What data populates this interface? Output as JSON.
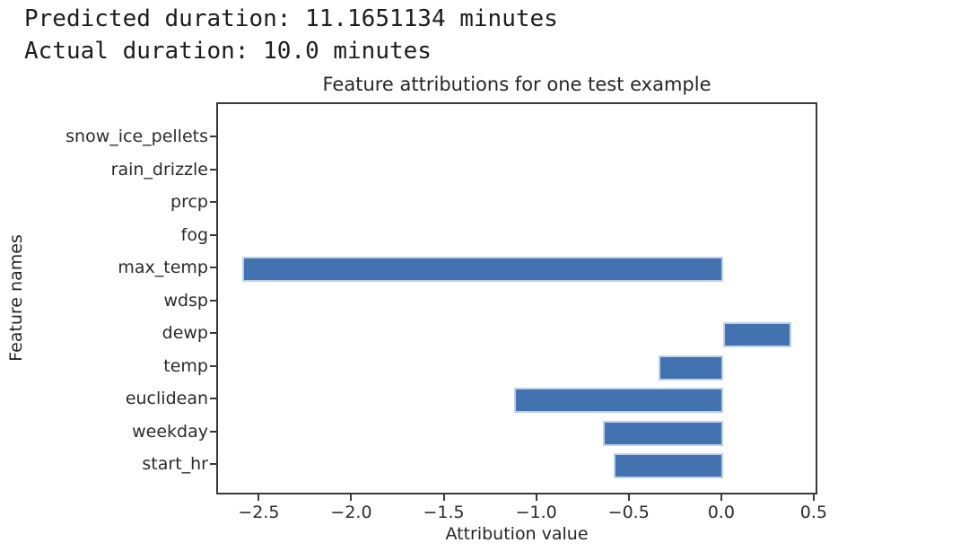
{
  "console": {
    "line1": "Predicted duration: 11.1651134 minutes",
    "line2": "Actual duration: 10.0 minutes"
  },
  "chart_data": {
    "type": "bar",
    "orientation": "horizontal",
    "title": "Feature attributions for one test example",
    "xlabel": "Attribution value",
    "ylabel": "Feature names",
    "categories_top_to_bottom": [
      "snow_ice_pellets",
      "rain_drizzle",
      "prcp",
      "fog",
      "max_temp",
      "wdsp",
      "dewp",
      "temp",
      "euclidean",
      "weekday",
      "start_hr"
    ],
    "values_top_to_bottom": [
      0,
      0,
      0,
      0,
      -2.6,
      0,
      0.37,
      -0.35,
      -1.13,
      -0.65,
      -0.59
    ],
    "xlim": [
      -2.73,
      0.52
    ],
    "xticks": [
      -2.5,
      -2.0,
      -1.5,
      -1.0,
      -0.5,
      0.0,
      0.5
    ],
    "xtick_labels": [
      "−2.5",
      "−2.0",
      "−1.5",
      "−1.0",
      "−0.5",
      "0.0",
      "0.5"
    ],
    "grid": false,
    "legend": null,
    "bar_color": "#4272b0",
    "bar_edge_color": "#bcd0ea",
    "axis_color": "#3a3a3a"
  }
}
